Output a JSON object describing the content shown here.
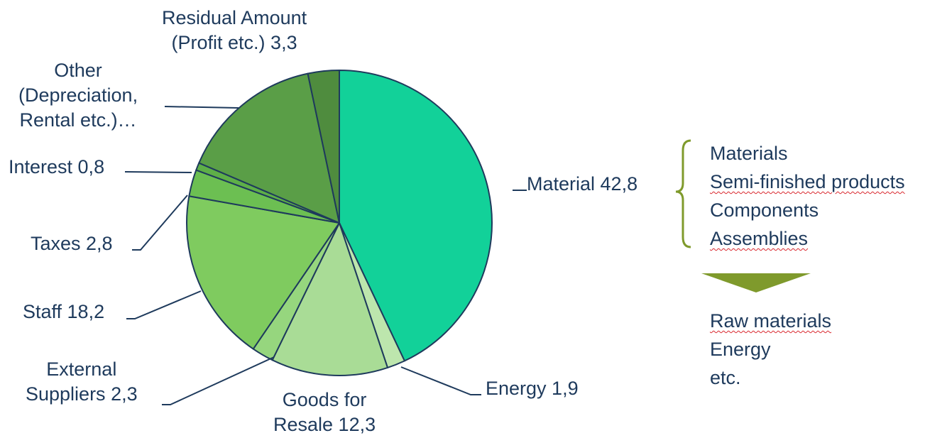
{
  "chart_data": {
    "type": "pie",
    "slices": [
      {
        "label": [
          "Material 42,8"
        ],
        "value": 42.8,
        "color": "#12d199"
      },
      {
        "label": [
          "Energy 1,9"
        ],
        "value": 1.9,
        "color": "#bde6ad"
      },
      {
        "label": [
          "Goods for",
          "Resale 12,3"
        ],
        "value": 12.3,
        "color": "#a9dc96"
      },
      {
        "label": [
          "External",
          "Suppliers 2,3"
        ],
        "value": 2.3,
        "color": "#96d67e"
      },
      {
        "label": [
          "Staff 18,2"
        ],
        "value": 18.2,
        "color": "#7fcb5f"
      },
      {
        "label": [
          "Taxes 2,8"
        ],
        "value": 2.8,
        "color": "#6cbf52"
      },
      {
        "label": [
          "Interest 0,8"
        ],
        "value": 0.8,
        "color": "#5eaf48"
      },
      {
        "label": [
          "Other",
          "(Depreciation,",
          "Rental etc.)…"
        ],
        "value": 15.2,
        "color": "#5a9e47"
      },
      {
        "label": [
          "Residual Amount",
          "(Profit etc.) 3,3"
        ],
        "value": 3.3,
        "color": "#4f8c3e"
      }
    ],
    "edge_color": "#1e3a5c",
    "text_color": "#1e3a5c"
  },
  "material_breakdown": {
    "items": [
      "Materials",
      "Semi-finished products",
      "Components",
      "Assemblies"
    ],
    "brace_color": "#7f9a2c"
  },
  "derived": {
    "arrow_color": "#7f9a2c",
    "items": [
      "Raw materials",
      "Energy",
      "etc."
    ]
  }
}
